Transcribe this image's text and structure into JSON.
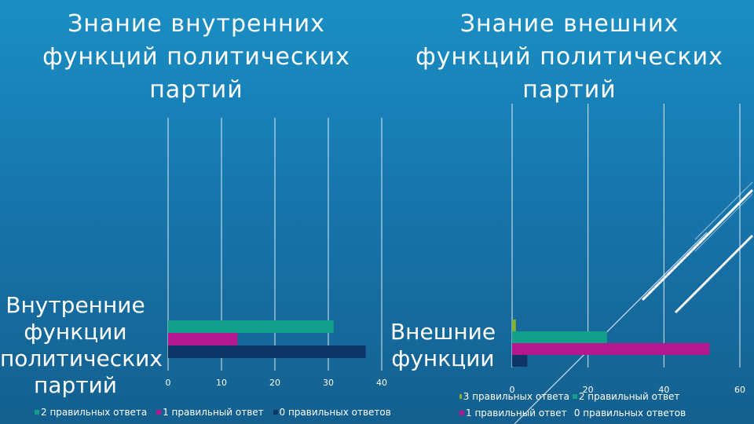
{
  "colors": {
    "teal": "#12a08a",
    "magenta": "#b4188e",
    "navy": "#0e3566",
    "olive": "#86b030"
  },
  "chart_data": [
    {
      "type": "bar",
      "orientation": "horizontal",
      "title": "Знание внутренних функций политических партий",
      "categories": [
        "Внутренние функции политических партий"
      ],
      "series": [
        {
          "name": "2 правильных ответа",
          "values": [
            31
          ],
          "color": "#12a08a"
        },
        {
          "name": "1 правильный ответ",
          "values": [
            13
          ],
          "color": "#b4188e"
        },
        {
          "name": "0 правильных ответов",
          "values": [
            37
          ],
          "color": "#0e3566"
        }
      ],
      "xlim": [
        0,
        40
      ],
      "xticks": [
        "0",
        "10",
        "20",
        "30",
        "40"
      ],
      "grid": true,
      "legend_position": "bottom"
    },
    {
      "type": "bar",
      "orientation": "horizontal",
      "title": "Знание внешних функций политических партий",
      "categories": [
        "Внешние функции"
      ],
      "series": [
        {
          "name": "3 правильных ответа",
          "values": [
            1
          ],
          "color": "#86b030"
        },
        {
          "name": "2 правильный ответ",
          "values": [
            25
          ],
          "color": "#12a08a"
        },
        {
          "name": "1 правильный ответ",
          "values": [
            52
          ],
          "color": "#b4188e"
        },
        {
          "name": "0 правильных ответов",
          "values": [
            4
          ],
          "color": "#0e3566"
        }
      ],
      "xlim": [
        0,
        60
      ],
      "xticks": [
        "0",
        "20",
        "40",
        "60"
      ],
      "grid": true,
      "legend_position": "bottom"
    }
  ]
}
